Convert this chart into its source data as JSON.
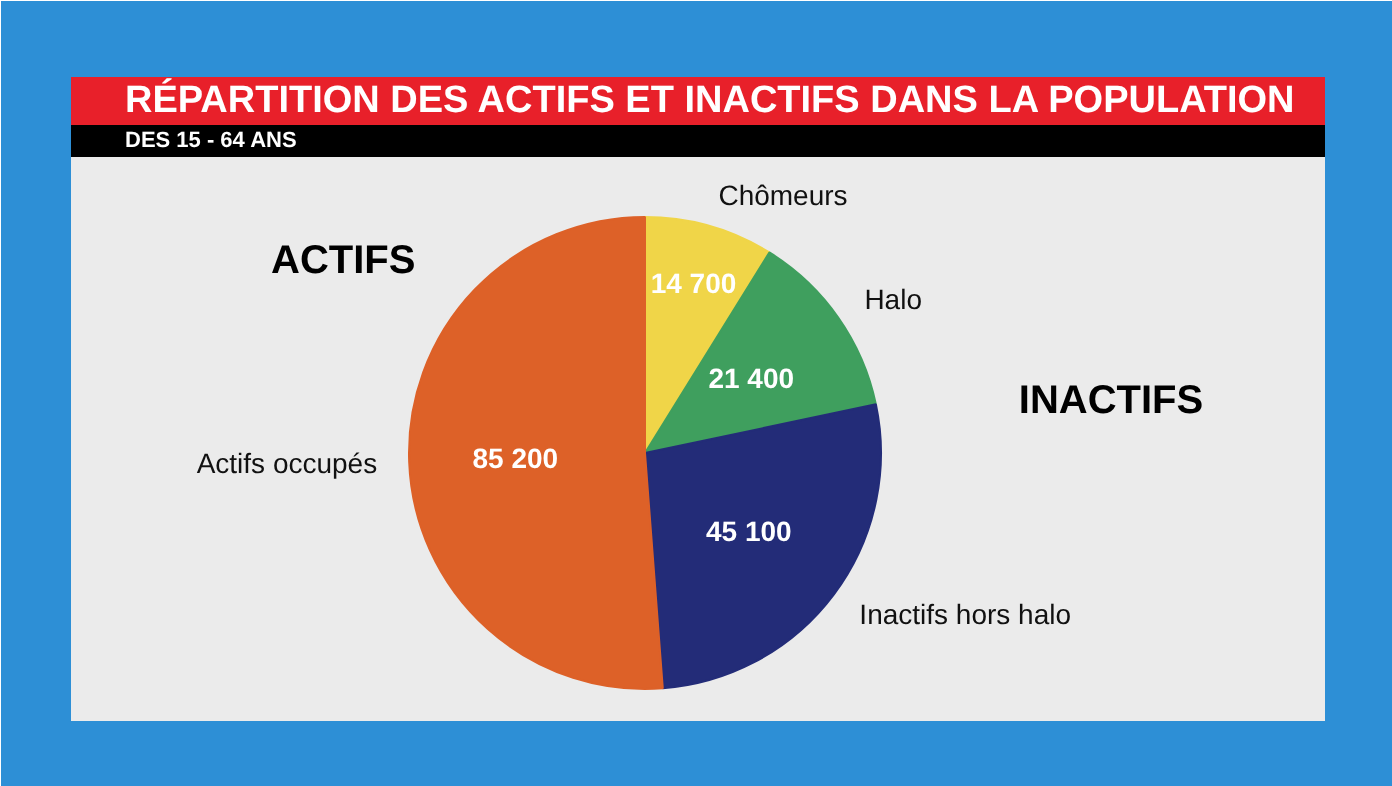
{
  "chart_data": {
    "type": "pie",
    "title": "RÉPARTITION DES ACTIFS ET INACTIFS DANS LA POPULATION",
    "subtitle": "DES 15 - 64 ANS",
    "categories": [
      "Chômeurs",
      "Halo",
      "Inactifs hors halo",
      "Actifs occupés"
    ],
    "values": [
      14700,
      21400,
      45100,
      85200
    ],
    "colors": [
      "#f0d548",
      "#3f9f5e",
      "#232c78",
      "#dd6128"
    ],
    "data_labels": true,
    "annotations": [
      "ACTIFS",
      "INACTIFS"
    ]
  }
}
